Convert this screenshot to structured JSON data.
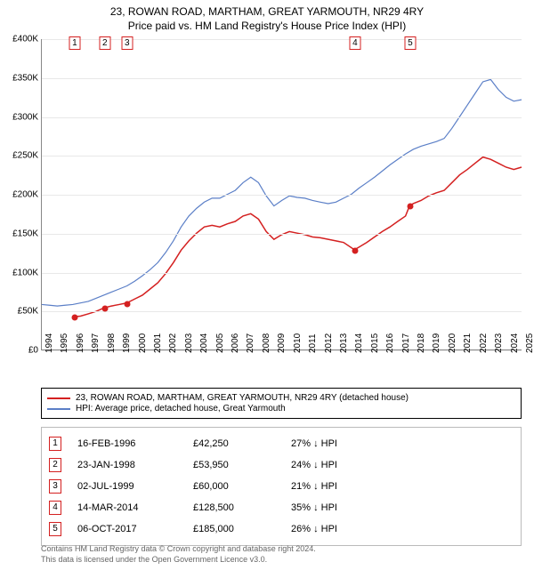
{
  "titles": {
    "line1": "23, ROWAN ROAD, MARTHAM, GREAT YARMOUTH, NR29 4RY",
    "line2": "Price paid vs. HM Land Registry's House Price Index (HPI)"
  },
  "chart": {
    "type": "line",
    "x_axis": {
      "min_year": 1994,
      "max_year": 2025,
      "tick_step": 1
    },
    "y_axis": {
      "min": 0,
      "max": 400000,
      "tick_step": 50000,
      "tick_prefix": "£",
      "tick_suffix": "K",
      "tick_divisor": 1000
    },
    "background_color": "#ffffff",
    "grid_color": "#e8e8e8",
    "series": [
      {
        "id": "price_paid",
        "color": "#d42020",
        "line_width": 1.5,
        "points": [
          [
            1996.12,
            42250
          ],
          [
            1996.5,
            43000
          ],
          [
            1997,
            46000
          ],
          [
            1997.5,
            49000
          ],
          [
            1998.06,
            53950
          ],
          [
            1998.5,
            56000
          ],
          [
            1999,
            58000
          ],
          [
            1999.5,
            60000
          ],
          [
            2000,
            65000
          ],
          [
            2000.5,
            70000
          ],
          [
            2001,
            78000
          ],
          [
            2001.5,
            86000
          ],
          [
            2002,
            98000
          ],
          [
            2002.5,
            112000
          ],
          [
            2003,
            128000
          ],
          [
            2003.5,
            140000
          ],
          [
            2004,
            150000
          ],
          [
            2004.5,
            158000
          ],
          [
            2005,
            160000
          ],
          [
            2005.5,
            158000
          ],
          [
            2006,
            162000
          ],
          [
            2006.5,
            165000
          ],
          [
            2007,
            172000
          ],
          [
            2007.5,
            175000
          ],
          [
            2008,
            168000
          ],
          [
            2008.5,
            152000
          ],
          [
            2009,
            142000
          ],
          [
            2009.5,
            148000
          ],
          [
            2010,
            152000
          ],
          [
            2010.5,
            150000
          ],
          [
            2011,
            148000
          ],
          [
            2011.5,
            145000
          ],
          [
            2012,
            144000
          ],
          [
            2012.5,
            142000
          ],
          [
            2013,
            140000
          ],
          [
            2013.5,
            138000
          ],
          [
            2014.2,
            128500
          ],
          [
            2014.5,
            132000
          ],
          [
            2015,
            138000
          ],
          [
            2015.5,
            145000
          ],
          [
            2016,
            152000
          ],
          [
            2016.5,
            158000
          ],
          [
            2017,
            165000
          ],
          [
            2017.5,
            172000
          ],
          [
            2017.76,
            185000
          ],
          [
            2018,
            188000
          ],
          [
            2018.5,
            192000
          ],
          [
            2019,
            198000
          ],
          [
            2019.5,
            202000
          ],
          [
            2020,
            205000
          ],
          [
            2020.5,
            215000
          ],
          [
            2021,
            225000
          ],
          [
            2021.5,
            232000
          ],
          [
            2022,
            240000
          ],
          [
            2022.5,
            248000
          ],
          [
            2023,
            245000
          ],
          [
            2023.5,
            240000
          ],
          [
            2024,
            235000
          ],
          [
            2024.5,
            232000
          ],
          [
            2025,
            235000
          ]
        ]
      },
      {
        "id": "hpi",
        "color": "#5b7fc7",
        "line_width": 1.2,
        "points": [
          [
            1994,
            58000
          ],
          [
            1994.5,
            57000
          ],
          [
            1995,
            56000
          ],
          [
            1995.5,
            57000
          ],
          [
            1996,
            58000
          ],
          [
            1996.5,
            60000
          ],
          [
            1997,
            62000
          ],
          [
            1997.5,
            66000
          ],
          [
            1998,
            70000
          ],
          [
            1998.5,
            74000
          ],
          [
            1999,
            78000
          ],
          [
            1999.5,
            82000
          ],
          [
            2000,
            88000
          ],
          [
            2000.5,
            95000
          ],
          [
            2001,
            103000
          ],
          [
            2001.5,
            112000
          ],
          [
            2002,
            125000
          ],
          [
            2002.5,
            140000
          ],
          [
            2003,
            158000
          ],
          [
            2003.5,
            172000
          ],
          [
            2004,
            182000
          ],
          [
            2004.5,
            190000
          ],
          [
            2005,
            195000
          ],
          [
            2005.5,
            195000
          ],
          [
            2006,
            200000
          ],
          [
            2006.5,
            205000
          ],
          [
            2007,
            215000
          ],
          [
            2007.5,
            222000
          ],
          [
            2008,
            215000
          ],
          [
            2008.5,
            198000
          ],
          [
            2009,
            185000
          ],
          [
            2009.5,
            192000
          ],
          [
            2010,
            198000
          ],
          [
            2010.5,
            196000
          ],
          [
            2011,
            195000
          ],
          [
            2011.5,
            192000
          ],
          [
            2012,
            190000
          ],
          [
            2012.5,
            188000
          ],
          [
            2013,
            190000
          ],
          [
            2013.5,
            195000
          ],
          [
            2014,
            200000
          ],
          [
            2014.5,
            208000
          ],
          [
            2015,
            215000
          ],
          [
            2015.5,
            222000
          ],
          [
            2016,
            230000
          ],
          [
            2016.5,
            238000
          ],
          [
            2017,
            245000
          ],
          [
            2017.5,
            252000
          ],
          [
            2018,
            258000
          ],
          [
            2018.5,
            262000
          ],
          [
            2019,
            265000
          ],
          [
            2019.5,
            268000
          ],
          [
            2020,
            272000
          ],
          [
            2020.5,
            285000
          ],
          [
            2021,
            300000
          ],
          [
            2021.5,
            315000
          ],
          [
            2022,
            330000
          ],
          [
            2022.5,
            345000
          ],
          [
            2023,
            348000
          ],
          [
            2023.5,
            335000
          ],
          [
            2024,
            325000
          ],
          [
            2024.5,
            320000
          ],
          [
            2025,
            322000
          ]
        ]
      }
    ],
    "sale_points": [
      {
        "idx": 1,
        "year": 1996.12,
        "price": 42250
      },
      {
        "idx": 2,
        "year": 1998.06,
        "price": 53950
      },
      {
        "idx": 3,
        "year": 1999.5,
        "price": 60000
      },
      {
        "idx": 4,
        "year": 2014.2,
        "price": 128500
      },
      {
        "idx": 5,
        "year": 2017.76,
        "price": 185000
      }
    ],
    "marker_border_color": "#d42020",
    "marker_text_color": "#000000"
  },
  "legend": {
    "items": [
      {
        "color": "#d42020",
        "label": "23, ROWAN ROAD, MARTHAM, GREAT YARMOUTH, NR29 4RY (detached house)"
      },
      {
        "color": "#5b7fc7",
        "label": "HPI: Average price, detached house, Great Yarmouth"
      }
    ]
  },
  "table": {
    "border_color": "#d42020",
    "rows": [
      {
        "idx": "1",
        "date": "16-FEB-1996",
        "price": "£42,250",
        "delta": "27% ↓ HPI"
      },
      {
        "idx": "2",
        "date": "23-JAN-1998",
        "price": "£53,950",
        "delta": "24% ↓ HPI"
      },
      {
        "idx": "3",
        "date": "02-JUL-1999",
        "price": "£60,000",
        "delta": "21% ↓ HPI"
      },
      {
        "idx": "4",
        "date": "14-MAR-2014",
        "price": "£128,500",
        "delta": "35% ↓ HPI"
      },
      {
        "idx": "5",
        "date": "06-OCT-2017",
        "price": "£185,000",
        "delta": "26% ↓ HPI"
      }
    ]
  },
  "footer": {
    "line1": "Contains HM Land Registry data © Crown copyright and database right 2024.",
    "line2": "This data is licensed under the Open Government Licence v3.0."
  }
}
